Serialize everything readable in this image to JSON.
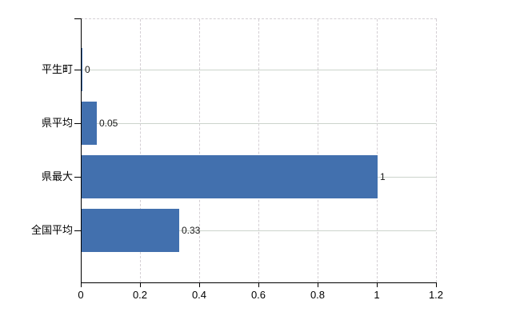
{
  "chart_data": {
    "type": "bar",
    "orientation": "horizontal",
    "title": "",
    "categories": [
      "平生町",
      "県平均",
      "県最大",
      "全国平均"
    ],
    "values": [
      0,
      0.05,
      1,
      0.33
    ],
    "value_labels": [
      "0",
      "0.05",
      "1",
      "0.33"
    ],
    "x_ticks": [
      0,
      0.2,
      0.4,
      0.6,
      0.8,
      1,
      1.2
    ],
    "x_tick_labels": [
      "0",
      "0.2",
      "0.4",
      "0.6",
      "0.8",
      "1",
      "1.2"
    ],
    "xlim": [
      0,
      1.2
    ],
    "grid": true,
    "legend": "none",
    "colors": {
      "bar": "#4270ae",
      "h_gridline": "#ccd4cc",
      "v_gridline": "#d4cfd4",
      "plot_border_dash": "#d4cfd4",
      "axis": "#000000",
      "category_text": "#000000",
      "value_text": "#1a1a1a",
      "background": "#ffffff"
    }
  }
}
